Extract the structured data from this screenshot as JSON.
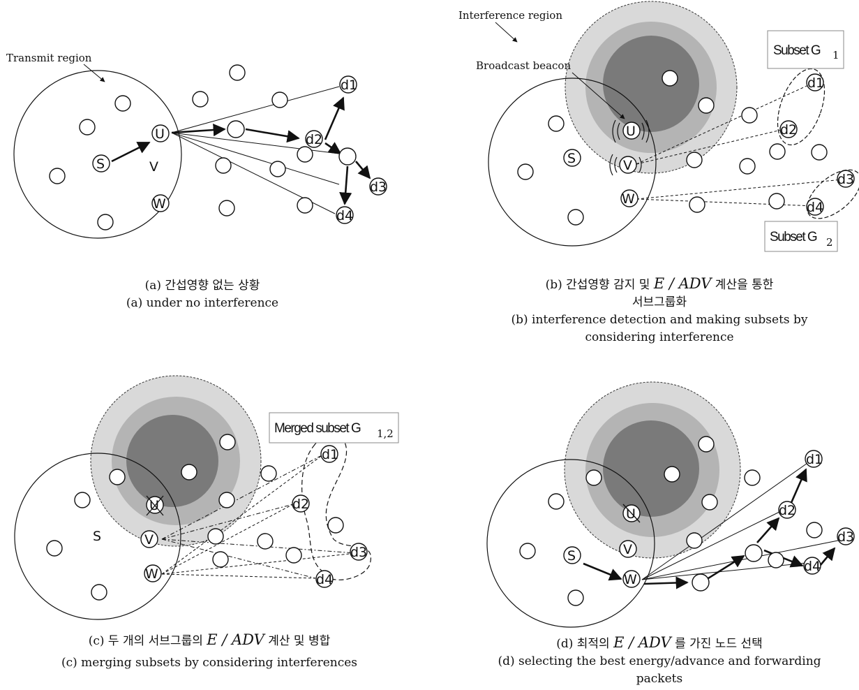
{
  "panel_a": {
    "transmit_region_label": "Transmit region",
    "caption_ko": "(a) 간섭영향 없는 상황",
    "caption_en": "(a) under no interference"
  },
  "panel_b": {
    "interference_region_label": "Interference region",
    "broadcast_label": "Broadcast beacon",
    "subset1_label": "Subset G",
    "subset1_sub": "1",
    "subset2_label": "Subset G",
    "subset2_sub": "2",
    "caption_ko_pre": "(b) 간섭영향 감지 및",
    "caption_ko_formula": "E / ADV",
    "caption_ko_post": "계산을 통한",
    "caption_ko_line2": "서브그룹화",
    "caption_en_line1": "(b) interference detection and making subsets by",
    "caption_en_line2": "considering interference"
  },
  "panel_c": {
    "merged_label": "Merged subset G",
    "merged_sub": "1,2",
    "caption_ko_pre": "(c) 두 개의 서브그룹의",
    "caption_ko_formula": "E / ADV",
    "caption_ko_post": "계산 및 병합",
    "caption_en": "(c) merging subsets by considering interferences"
  },
  "panel_d": {
    "caption_ko_pre": "(d) 최적의",
    "caption_ko_formula": "E / ADV",
    "caption_ko_post": "를 가진 노드 선택",
    "caption_en_line1": "(d) selecting the best energy/advance and forwarding",
    "caption_en_line2": "packets"
  },
  "node_labels": {
    "s": "S",
    "u": "U",
    "v": "V",
    "w": "W",
    "d1": "d1",
    "d2": "d2",
    "d3": "d3",
    "d4": "d4"
  },
  "colors": {
    "interference_outer": "#d9d9d9",
    "interference_mid": "#b4b4b4",
    "interference_core": "#7a7a7a"
  }
}
